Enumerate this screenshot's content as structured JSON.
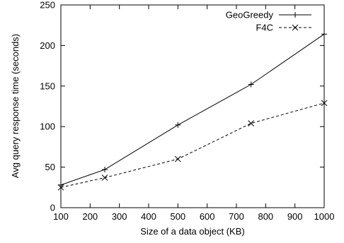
{
  "chart_data": {
    "type": "line",
    "xlabel": "Size of a data object (KB)",
    "ylabel": "Avg query response time (seconds)",
    "xlim": [
      100,
      1000
    ],
    "ylim": [
      0,
      250
    ],
    "xticks": [
      100,
      200,
      300,
      400,
      500,
      600,
      700,
      800,
      900,
      1000
    ],
    "yticks": [
      0,
      50,
      100,
      150,
      200,
      250
    ],
    "grid": false,
    "legend_position": "top-right",
    "series": [
      {
        "name": "GeoGreedy",
        "marker": "plus",
        "line_style": "solid",
        "color": "#000000",
        "x": [
          100,
          250,
          500,
          750,
          1000
        ],
        "y": [
          28,
          47,
          102,
          152,
          214
        ]
      },
      {
        "name": "F4C",
        "marker": "cross",
        "line_style": "dashed",
        "color": "#000000",
        "x": [
          100,
          250,
          500,
          750,
          1000
        ],
        "y": [
          25,
          37,
          60,
          104,
          129
        ]
      }
    ]
  }
}
